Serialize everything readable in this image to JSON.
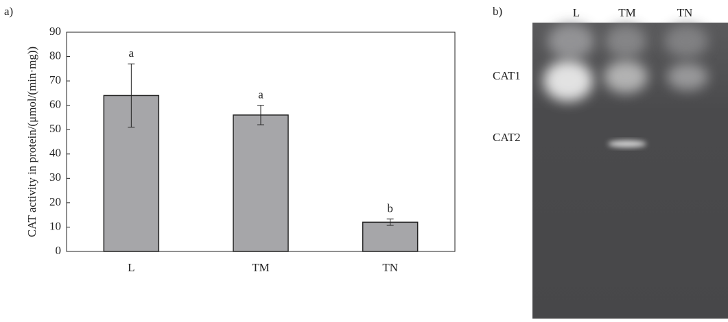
{
  "chart_data": {
    "type": "bar",
    "panel_label": "a)",
    "y_label": "CAT activity in protein/(μmol/(min·mg))",
    "categories": [
      "L",
      "TM",
      "TN"
    ],
    "values": [
      64,
      56,
      12
    ],
    "errors": [
      13,
      4,
      1.3
    ],
    "annotations": [
      "a",
      "a",
      "b"
    ],
    "color": "#a6a6a9",
    "ylim": [
      0,
      90
    ],
    "yticks": [
      0,
      10,
      20,
      30,
      40,
      50,
      60,
      70,
      80,
      90
    ],
    "grid": false
  },
  "gel": {
    "panel_label": "b)",
    "lanes": [
      "L",
      "TM",
      "TN"
    ],
    "bands": [
      "CAT1",
      "CAT2"
    ]
  }
}
